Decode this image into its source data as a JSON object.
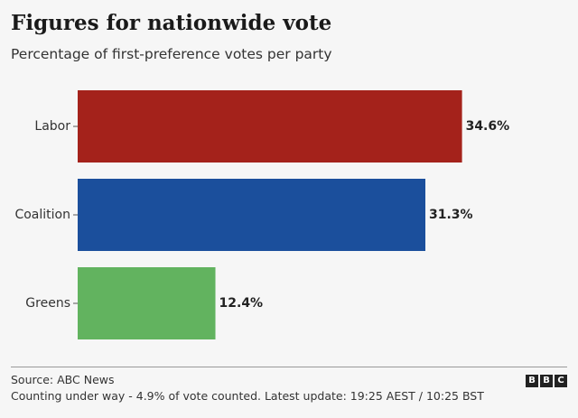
{
  "header": {
    "title": "Figures for nationwide vote",
    "subtitle": "Percentage of first-preference votes per party"
  },
  "chart_data": {
    "type": "bar",
    "orientation": "horizontal",
    "categories": [
      "Labor",
      "Coalition",
      "Greens"
    ],
    "values": [
      34.6,
      31.3,
      12.4
    ],
    "value_labels": [
      "34.6%",
      "31.3%",
      "12.4%"
    ],
    "colors": [
      "#a4221b",
      "#1b4f9c",
      "#62b35f"
    ],
    "title": "Figures for nationwide vote",
    "subtitle": "Percentage of first-preference votes per party",
    "xlabel": "",
    "ylabel": "",
    "unit": "%",
    "grid": false,
    "legend": "none"
  },
  "footer": {
    "source": "Source: ABC News",
    "note": "Counting under way - 4.9% of vote counted. Latest update: 19:25 AEST / 10:25 BST",
    "logo_letters": [
      "B",
      "B",
      "C"
    ]
  }
}
